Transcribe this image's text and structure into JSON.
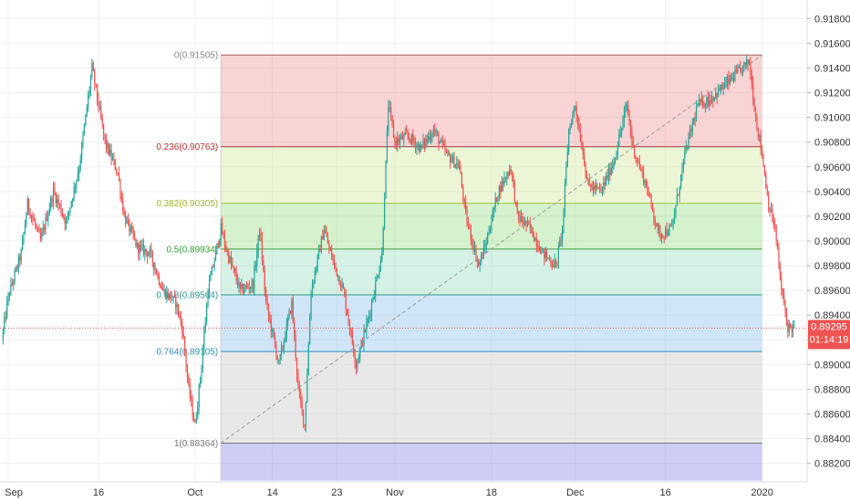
{
  "chart_data": {
    "type": "candlestick",
    "symbol_pair": "",
    "y_axis": {
      "ylim": [
        0.8805,
        0.9195
      ],
      "ticks": [
        "0.91800",
        "0.91600",
        "0.91400",
        "0.91200",
        "0.91000",
        "0.90800",
        "0.90600",
        "0.90400",
        "0.90200",
        "0.90000",
        "0.89800",
        "0.89600",
        "0.89400",
        "0.89200",
        "0.89000",
        "0.88800",
        "0.88600",
        "0.88400",
        "0.88200"
      ],
      "tick_values": [
        0.918,
        0.916,
        0.914,
        0.912,
        0.91,
        0.908,
        0.906,
        0.904,
        0.902,
        0.9,
        0.898,
        0.896,
        0.894,
        0.892,
        0.89,
        0.888,
        0.886,
        0.884,
        0.882
      ]
    },
    "x_axis": {
      "xlim": [
        0,
        124
      ],
      "ticks": [
        {
          "label": "Sep",
          "x": 1
        },
        {
          "label": "16",
          "x": 15
        },
        {
          "label": "Oct",
          "x": 30
        },
        {
          "label": "14",
          "x": 42
        },
        {
          "label": "23",
          "x": 52
        },
        {
          "label": "Nov",
          "x": 61
        },
        {
          "label": "18",
          "x": 76
        },
        {
          "label": "Dec",
          "x": 89
        },
        {
          "label": "16",
          "x": 103
        },
        {
          "label": "2020",
          "x": 118
        }
      ]
    },
    "fibonacci": {
      "x_start": 34,
      "x_end": 118,
      "levels": [
        {
          "ratio": "0",
          "price": 0.91505,
          "label": "0(0.91505)",
          "line": "#b05c5c",
          "fill": "rgba(232,112,112,0.30)",
          "text": "#888888"
        },
        {
          "ratio": "0.236",
          "price": 0.90763,
          "label": "0.236(0.90763)",
          "line": "#9e3b3b",
          "fill": "rgba(200,230,140,0.35)",
          "text": "#c23030"
        },
        {
          "ratio": "0.382",
          "price": 0.90305,
          "label": "0.382(0.90305)",
          "line": "#9bc43a",
          "fill": "rgba(120,210,90,0.30)",
          "text": "#9bb82a"
        },
        {
          "ratio": "0.5",
          "price": 0.89934,
          "label": "0.5(0.89934)",
          "line": "#3aa13a",
          "fill": "rgba(120,210,170,0.30)",
          "text": "#2fa32f"
        },
        {
          "ratio": "0.618",
          "price": 0.89564,
          "label": "0.618(0.89564)",
          "line": "#2a9a8a",
          "fill": "rgba(120,180,230,0.35)",
          "text": "#2a9a8a"
        },
        {
          "ratio": "0.764",
          "price": 0.89105,
          "label": "0.764(0.89105)",
          "line": "#2f8fb8",
          "fill": "rgba(190,190,190,0.35)",
          "text": "#2f8fb8"
        },
        {
          "ratio": "1",
          "price": 0.88364,
          "label": "1(0.88364)",
          "line": "#777777",
          "fill": "rgba(130,130,230,0.40)",
          "text": "#777777"
        }
      ],
      "bottom_price": 0.8806
    },
    "trend_line": {
      "x1": 34,
      "y1": 0.88364,
      "x2": 118,
      "y2": 0.91505
    },
    "current_price": {
      "value": 0.89295,
      "label": "0.89295",
      "countdown": "01:14:19",
      "color": "#ef5350"
    },
    "colors": {
      "up": "#26a69a",
      "down": "#ef5350",
      "grid": "#eef1f5"
    },
    "anchors": [
      [
        0,
        0.892
      ],
      [
        1,
        0.8955
      ],
      [
        3,
        0.899
      ],
      [
        4,
        0.903
      ],
      [
        6,
        0.9
      ],
      [
        8,
        0.904
      ],
      [
        10,
        0.9015
      ],
      [
        12,
        0.906
      ],
      [
        14,
        0.914
      ],
      [
        16,
        0.908
      ],
      [
        18,
        0.9055
      ],
      [
        19,
        0.902
      ],
      [
        21,
        0.8995
      ],
      [
        23,
        0.899
      ],
      [
        25,
        0.896
      ],
      [
        27,
        0.895
      ],
      [
        28,
        0.893
      ],
      [
        29,
        0.888
      ],
      [
        30,
        0.885
      ],
      [
        31,
        0.89
      ],
      [
        32,
        0.896
      ],
      [
        34,
        0.901
      ],
      [
        35,
        0.899
      ],
      [
        37,
        0.896
      ],
      [
        39,
        0.8965
      ],
      [
        40,
        0.901
      ],
      [
        41,
        0.895
      ],
      [
        43,
        0.89
      ],
      [
        45,
        0.895
      ],
      [
        46,
        0.888
      ],
      [
        47,
        0.885
      ],
      [
        48,
        0.896
      ],
      [
        50,
        0.901
      ],
      [
        51,
        0.899
      ],
      [
        53,
        0.896
      ],
      [
        54,
        0.893
      ],
      [
        55,
        0.89
      ],
      [
        57,
        0.894
      ],
      [
        59,
        0.899
      ],
      [
        60,
        0.911
      ],
      [
        61,
        0.908
      ],
      [
        63,
        0.9085
      ],
      [
        65,
        0.9075
      ],
      [
        67,
        0.909
      ],
      [
        69,
        0.907
      ],
      [
        71,
        0.906
      ],
      [
        72,
        0.902
      ],
      [
        74,
        0.898
      ],
      [
        75,
        0.8995
      ],
      [
        77,
        0.904
      ],
      [
        79,
        0.906
      ],
      [
        80,
        0.902
      ],
      [
        82,
        0.901
      ],
      [
        84,
        0.899
      ],
      [
        86,
        0.898
      ],
      [
        87,
        0.901
      ],
      [
        88,
        0.909
      ],
      [
        89,
        0.911
      ],
      [
        91,
        0.9045
      ],
      [
        93,
        0.904
      ],
      [
        95,
        0.9065
      ],
      [
        97,
        0.911
      ],
      [
        98,
        0.9075
      ],
      [
        100,
        0.9045
      ],
      [
        102,
        0.9005
      ],
      [
        104,
        0.901
      ],
      [
        106,
        0.907
      ],
      [
        108,
        0.911
      ],
      [
        110,
        0.9115
      ],
      [
        112,
        0.9125
      ],
      [
        114,
        0.9135
      ],
      [
        116,
        0.9145
      ],
      [
        117,
        0.91
      ],
      [
        118,
        0.907
      ],
      [
        119,
        0.903
      ],
      [
        120,
        0.901
      ],
      [
        121,
        0.896
      ],
      [
        122,
        0.893
      ],
      [
        123,
        0.893
      ]
    ]
  }
}
